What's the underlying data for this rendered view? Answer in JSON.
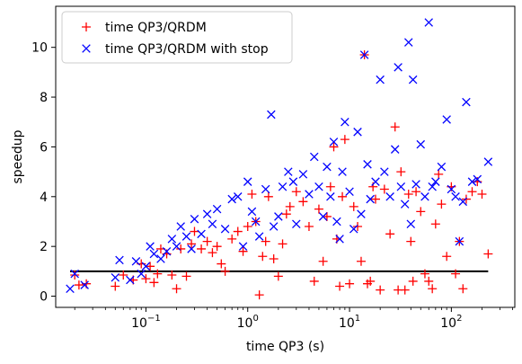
{
  "chart_data": {
    "type": "scatter",
    "title": "",
    "xlabel": "time QP3 (s)",
    "ylabel": "speedup",
    "xscale": "log",
    "xlim": [
      0.013,
      420
    ],
    "ylim": [
      -0.45,
      11.65
    ],
    "grid": false,
    "legend_position": "top-left",
    "x_ticks": [
      {
        "value": 0.1,
        "base": "10",
        "exp": "−1"
      },
      {
        "value": 1,
        "base": "10",
        "exp": "0"
      },
      {
        "value": 10,
        "base": "10",
        "exp": "1"
      },
      {
        "value": 100,
        "base": "10",
        "exp": "2"
      }
    ],
    "y_ticks": [
      {
        "value": 0,
        "label": "0"
      },
      {
        "value": 2,
        "label": "2"
      },
      {
        "value": 4,
        "label": "4"
      },
      {
        "value": 6,
        "label": "6"
      },
      {
        "value": 8,
        "label": "8"
      },
      {
        "value": 10,
        "label": "10"
      }
    ],
    "reference_line": {
      "y": 1.0,
      "x_range": [
        0.018,
        230
      ],
      "color": "#000000"
    },
    "series": [
      {
        "name": "time QP3/QRDM",
        "marker": "plus",
        "color": "#ff0000",
        "points": [
          [
            0.02,
            0.85
          ],
          [
            0.022,
            0.45
          ],
          [
            0.026,
            0.5
          ],
          [
            0.05,
            0.4
          ],
          [
            0.06,
            0.85
          ],
          [
            0.075,
            0.65
          ],
          [
            0.09,
            1.3
          ],
          [
            0.1,
            0.7
          ],
          [
            0.11,
            1.2
          ],
          [
            0.12,
            0.55
          ],
          [
            0.13,
            0.9
          ],
          [
            0.14,
            1.9
          ],
          [
            0.16,
            1.7
          ],
          [
            0.18,
            0.85
          ],
          [
            0.2,
            0.3
          ],
          [
            0.22,
            1.9
          ],
          [
            0.25,
            0.8
          ],
          [
            0.28,
            2.1
          ],
          [
            0.3,
            2.6
          ],
          [
            0.35,
            1.9
          ],
          [
            0.4,
            2.2
          ],
          [
            0.45,
            1.75
          ],
          [
            0.5,
            2.0
          ],
          [
            0.55,
            1.3
          ],
          [
            0.6,
            1.0
          ],
          [
            0.7,
            2.3
          ],
          [
            0.8,
            2.6
          ],
          [
            0.9,
            1.8
          ],
          [
            1.0,
            2.8
          ],
          [
            1.1,
            4.1
          ],
          [
            1.2,
            3.0
          ],
          [
            1.3,
            0.05
          ],
          [
            1.4,
            1.6
          ],
          [
            1.5,
            2.2
          ],
          [
            1.6,
            4.0
          ],
          [
            1.8,
            1.5
          ],
          [
            2.0,
            0.8
          ],
          [
            2.2,
            2.1
          ],
          [
            2.4,
            3.3
          ],
          [
            2.6,
            3.6
          ],
          [
            3.0,
            4.2
          ],
          [
            3.5,
            3.8
          ],
          [
            4.0,
            2.8
          ],
          [
            4.5,
            0.6
          ],
          [
            5.0,
            3.5
          ],
          [
            5.5,
            1.4
          ],
          [
            6.0,
            3.2
          ],
          [
            6.5,
            4.4
          ],
          [
            7.0,
            6.0
          ],
          [
            7.5,
            2.3
          ],
          [
            8.0,
            0.4
          ],
          [
            8.5,
            4.0
          ],
          [
            9.0,
            6.3
          ],
          [
            10.0,
            0.5
          ],
          [
            11.0,
            3.6
          ],
          [
            12.0,
            2.8
          ],
          [
            13.0,
            1.4
          ],
          [
            14.0,
            9.7
          ],
          [
            15.0,
            0.5
          ],
          [
            16.0,
            0.6
          ],
          [
            17.0,
            4.4
          ],
          [
            18.0,
            3.9
          ],
          [
            20.0,
            0.25
          ],
          [
            22.0,
            4.3
          ],
          [
            25.0,
            2.5
          ],
          [
            28.0,
            6.8
          ],
          [
            30.0,
            0.25
          ],
          [
            32.0,
            5.0
          ],
          [
            35.0,
            0.25
          ],
          [
            38.0,
            4.1
          ],
          [
            40.0,
            2.2
          ],
          [
            42.0,
            0.6
          ],
          [
            45.0,
            4.2
          ],
          [
            50.0,
            3.4
          ],
          [
            55.0,
            0.9
          ],
          [
            60.0,
            0.6
          ],
          [
            65.0,
            0.3
          ],
          [
            70.0,
            2.9
          ],
          [
            75.0,
            4.9
          ],
          [
            80.0,
            3.7
          ],
          [
            90.0,
            1.6
          ],
          [
            100.0,
            4.4
          ],
          [
            110.0,
            0.9
          ],
          [
            120.0,
            2.2
          ],
          [
            130.0,
            0.3
          ],
          [
            140.0,
            3.9
          ],
          [
            160.0,
            4.2
          ],
          [
            180.0,
            4.6
          ],
          [
            200.0,
            4.1
          ],
          [
            230.0,
            1.7
          ]
        ]
      },
      {
        "name": "time QP3/QRDM with stop",
        "marker": "x",
        "color": "#0000ff",
        "points": [
          [
            0.018,
            0.3
          ],
          [
            0.02,
            0.9
          ],
          [
            0.025,
            0.45
          ],
          [
            0.05,
            0.75
          ],
          [
            0.055,
            1.45
          ],
          [
            0.07,
            0.65
          ],
          [
            0.08,
            1.4
          ],
          [
            0.09,
            0.9
          ],
          [
            0.1,
            1.2
          ],
          [
            0.11,
            2.0
          ],
          [
            0.12,
            1.7
          ],
          [
            0.14,
            1.5
          ],
          [
            0.16,
            1.8
          ],
          [
            0.18,
            2.3
          ],
          [
            0.2,
            2.0
          ],
          [
            0.22,
            2.8
          ],
          [
            0.25,
            2.4
          ],
          [
            0.28,
            1.9
          ],
          [
            0.3,
            3.1
          ],
          [
            0.35,
            2.5
          ],
          [
            0.4,
            3.3
          ],
          [
            0.45,
            2.9
          ],
          [
            0.5,
            3.5
          ],
          [
            0.6,
            2.7
          ],
          [
            0.7,
            3.9
          ],
          [
            0.8,
            4.0
          ],
          [
            0.9,
            2.0
          ],
          [
            1.0,
            4.6
          ],
          [
            1.1,
            3.4
          ],
          [
            1.2,
            3.0
          ],
          [
            1.3,
            2.4
          ],
          [
            1.5,
            4.3
          ],
          [
            1.7,
            7.3
          ],
          [
            1.8,
            2.8
          ],
          [
            2.0,
            3.2
          ],
          [
            2.2,
            4.4
          ],
          [
            2.5,
            5.0
          ],
          [
            2.8,
            4.6
          ],
          [
            3.0,
            2.9
          ],
          [
            3.5,
            4.9
          ],
          [
            4.0,
            4.1
          ],
          [
            4.5,
            5.6
          ],
          [
            5.0,
            4.4
          ],
          [
            5.5,
            3.2
          ],
          [
            6.0,
            5.2
          ],
          [
            6.5,
            4.0
          ],
          [
            7.0,
            6.2
          ],
          [
            7.5,
            3.0
          ],
          [
            8.0,
            2.3
          ],
          [
            8.5,
            5.0
          ],
          [
            9.0,
            7.0
          ],
          [
            10.0,
            4.2
          ],
          [
            11.0,
            2.7
          ],
          [
            12.0,
            6.6
          ],
          [
            13.0,
            3.3
          ],
          [
            14.0,
            9.7
          ],
          [
            15.0,
            5.3
          ],
          [
            16.0,
            3.9
          ],
          [
            18.0,
            4.6
          ],
          [
            20.0,
            8.7
          ],
          [
            22.0,
            5.0
          ],
          [
            25.0,
            4.0
          ],
          [
            28.0,
            5.9
          ],
          [
            30.0,
            9.2
          ],
          [
            32.0,
            4.4
          ],
          [
            35.0,
            3.7
          ],
          [
            38.0,
            10.2
          ],
          [
            40.0,
            2.9
          ],
          [
            42.0,
            8.7
          ],
          [
            45.0,
            4.5
          ],
          [
            50.0,
            6.1
          ],
          [
            55.0,
            4.0
          ],
          [
            60.0,
            11.0
          ],
          [
            65.0,
            4.4
          ],
          [
            70.0,
            4.6
          ],
          [
            80.0,
            5.2
          ],
          [
            90.0,
            7.1
          ],
          [
            100.0,
            4.3
          ],
          [
            110.0,
            4.0
          ],
          [
            120.0,
            2.2
          ],
          [
            130.0,
            3.8
          ],
          [
            140.0,
            7.8
          ],
          [
            160.0,
            4.6
          ],
          [
            180.0,
            4.7
          ],
          [
            230.0,
            5.4
          ]
        ]
      }
    ]
  }
}
